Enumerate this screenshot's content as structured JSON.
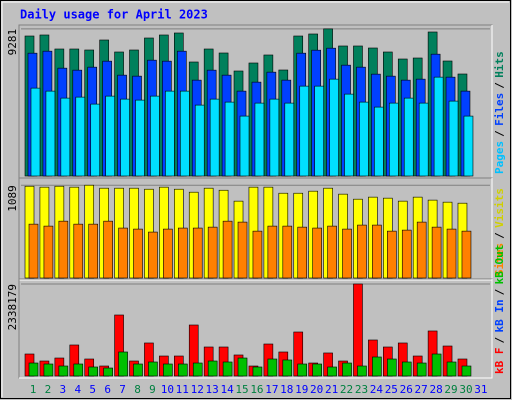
{
  "title": "Daily usage for April 2023",
  "chart_data": [
    {
      "type": "bar",
      "ylim": [
        0,
        9400
      ],
      "yticks": [
        9281
      ],
      "legend": [
        {
          "text": "Pages",
          "color": "#00c0ff"
        },
        {
          "text": "Files",
          "color": "#0040ff"
        },
        {
          "text": "Hits",
          "color": "#00805c"
        }
      ],
      "series": [
        {
          "color": "#00805c",
          "values": [
            8832,
            8896,
            8012,
            8012,
            7949,
            8580,
            7823,
            7949,
            8706,
            8896,
            9022,
            7192,
            8012,
            7760,
            6624,
            7129,
            7634,
            6687,
            8832,
            8959,
            9281,
            8202,
            8202,
            8075,
            7823,
            7381,
            7444,
            9085,
            7255,
            6435,
            null
          ]
        },
        {
          "color": "#0040ff",
          "values": [
            7749,
            7875,
            6804,
            6678,
            6867,
            7245,
            6363,
            6300,
            7308,
            7245,
            7875,
            6048,
            6678,
            6363,
            5355,
            5922,
            6552,
            6048,
            7749,
            7938,
            8064,
            6993,
            6867,
            6426,
            6300,
            6048,
            6111,
            7686,
            6237,
            5355,
            null
          ]
        },
        {
          "color": "#00e0ff",
          "values": [
            5544,
            5355,
            4914,
            4977,
            4536,
            5040,
            4851,
            4788,
            5040,
            5355,
            5355,
            4473,
            4851,
            4662,
            3780,
            4599,
            4851,
            4599,
            5670,
            5670,
            6111,
            5166,
            4662,
            4347,
            4599,
            4914,
            4599,
            6237,
            4725,
            3780,
            null
          ]
        }
      ]
    },
    {
      "type": "bar",
      "ylim": [
        0,
        1150
      ],
      "yticks": [
        1089
      ],
      "legend": [
        {
          "text": "Sites",
          "color": "#ff8000"
        },
        {
          "text": "Visits",
          "color": "#d0d000"
        }
      ],
      "series": [
        {
          "color": "#ffff00",
          "values": [
            1077,
            1066,
            1077,
            1066,
            1089,
            1054,
            1054,
            1054,
            1042,
            1066,
            1042,
            1007,
            1054,
            1030,
            902,
            1066,
            1066,
            995,
            995,
            1019,
            1054,
            984,
            925,
            949,
            937,
            902,
            949,
            914,
            890,
            878,
            null
          ]
        },
        {
          "color": "#ff8000",
          "values": [
            632,
            609,
            667,
            632,
            632,
            667,
            586,
            574,
            539,
            574,
            586,
            586,
            597,
            667,
            656,
            550,
            609,
            609,
            597,
            586,
            609,
            574,
            621,
            621,
            550,
            562,
            656,
            597,
            574,
            550,
            null
          ]
        }
      ]
    },
    {
      "type": "bar",
      "ylim": [
        0,
        2414000
      ],
      "yticks": [
        2338179
      ],
      "legend": [
        {
          "text": "kB F",
          "color": "#ff0000"
        },
        {
          "text": "kB In",
          "color": "#0040ff"
        },
        {
          "text": "kB Out",
          "color": "#00c000"
        }
      ],
      "categories": [
        "1",
        "2",
        "3",
        "4",
        "5",
        "6",
        "7",
        "8",
        "9",
        "10",
        "11",
        "12",
        "13",
        "14",
        "15",
        "16",
        "17",
        "18",
        "19",
        "20",
        "21",
        "22",
        "23",
        "24",
        "25",
        "26",
        "27",
        "28",
        "29",
        "30",
        "31"
      ],
      "category_colors": [
        "#008040",
        "#008040",
        "#0000ff",
        "#0000ff",
        "#0000ff",
        "#0000ff",
        "#0000ff",
        "#008040",
        "#008040",
        "#0000ff",
        "#0000ff",
        "#0000ff",
        "#0000ff",
        "#0000ff",
        "#008040",
        "#008040",
        "#0000ff",
        "#0000ff",
        "#0000ff",
        "#0000ff",
        "#0000ff",
        "#008040",
        "#008040",
        "#0000ff",
        "#0000ff",
        "#0000ff",
        "#0000ff",
        "#0000ff",
        "#008040",
        "#008040",
        "#0000ff"
      ],
      "series": [
        {
          "color": "#ff0000",
          "values": [
            559000,
            381000,
            457000,
            788000,
            432000,
            254000,
            1550000,
            381000,
            839000,
            508000,
            508000,
            1296000,
            737000,
            737000,
            534000,
            254000,
            813000,
            610000,
            1118000,
            330000,
            585000,
            381000,
            2338179,
            915000,
            737000,
            839000,
            508000,
            1144000,
            762000,
            432000,
            null
          ]
        },
        {
          "color": "#00c000",
          "values": [
            330000,
            305000,
            254000,
            305000,
            229000,
            203000,
            610000,
            305000,
            356000,
            305000,
            305000,
            330000,
            381000,
            356000,
            457000,
            229000,
            432000,
            407000,
            305000,
            305000,
            229000,
            330000,
            254000,
            483000,
            432000,
            356000,
            330000,
            559000,
            356000,
            254000,
            null
          ]
        }
      ]
    }
  ]
}
